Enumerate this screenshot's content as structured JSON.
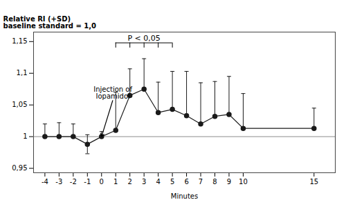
{
  "chart_data": {
    "type": "line",
    "xlabel": "Minutes",
    "ylabel": "Relative RI (+SD)\nbaseline standard = 1,0",
    "x": [
      -4,
      -3,
      -2,
      -1,
      0,
      1,
      2,
      3,
      4,
      5,
      6,
      7,
      8,
      9,
      10,
      15
    ],
    "values": [
      1.0,
      1.0,
      1.0,
      0.988,
      1.0,
      1.01,
      1.065,
      1.075,
      1.038,
      1.043,
      1.033,
      1.02,
      1.032,
      1.035,
      1.013,
      1.013
    ],
    "error_upper": [
      0.02,
      0.022,
      0.02,
      0.015,
      0.008,
      0.06,
      0.042,
      0.048,
      0.048,
      0.06,
      0.07,
      0.065,
      0.055,
      0.06,
      0.055,
      0.032
    ],
    "error_lower": [
      0.0,
      0.0,
      0.0,
      0.015,
      0.0,
      0.0,
      0.0,
      0.0,
      0.0,
      0.0,
      0.0,
      0.0,
      0.0,
      0.0,
      0.0,
      0.0
    ],
    "color": "#1a1a1a",
    "marker": "circle",
    "xlim": [
      -4.8,
      16.5
    ],
    "xticks": [
      -4,
      -3,
      -2,
      -1,
      0,
      1,
      2,
      3,
      4,
      5,
      6,
      7,
      8,
      9,
      10,
      15
    ],
    "ylim": [
      0.943,
      1.165
    ],
    "yticks": [
      {
        "value": 0.95,
        "label": "0,95"
      },
      1,
      {
        "value": 1.05,
        "label": "1,05"
      },
      {
        "value": 1.1,
        "label": "1,1"
      },
      {
        "value": 1.15,
        "label": "1,15"
      }
    ],
    "baseline": 1.0,
    "grid": false,
    "annotations": [
      {
        "text": "Injection of\nIopamidol",
        "x": 0,
        "y": 1.0,
        "text_x": 0.8,
        "text_y": 1.058
      }
    ],
    "significance": {
      "label": "P < 0,05",
      "x_start": 1,
      "x_end": 5,
      "y": 1.148,
      "ticks": [
        1,
        2,
        3,
        4,
        5
      ],
      "tick_len": 0.008
    }
  }
}
